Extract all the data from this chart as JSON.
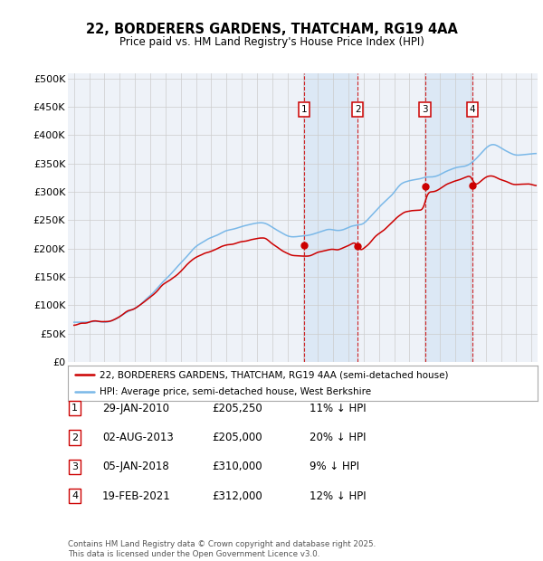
{
  "title": "22, BORDERERS GARDENS, THATCHAM, RG19 4AA",
  "subtitle": "Price paid vs. HM Land Registry's House Price Index (HPI)",
  "ylim": [
    0,
    510000
  ],
  "yticks": [
    0,
    50000,
    100000,
    150000,
    200000,
    250000,
    300000,
    350000,
    400000,
    450000,
    500000
  ],
  "background_color": "#ffffff",
  "plot_bg_color": "#eef2f8",
  "grid_color": "#cccccc",
  "red_line_color": "#cc0000",
  "blue_line_color": "#7ab8e8",
  "vline_color": "#cc0000",
  "shade_color": "#dce8f5",
  "sale_markers": [
    {
      "label": "1",
      "date_x": 2010.08,
      "price": 205250
    },
    {
      "label": "2",
      "date_x": 2013.6,
      "price": 205000
    },
    {
      "label": "3",
      "date_x": 2018.02,
      "price": 310000
    },
    {
      "label": "4",
      "date_x": 2021.12,
      "price": 312000
    }
  ],
  "legend_red": "22, BORDERERS GARDENS, THATCHAM, RG19 4AA (semi-detached house)",
  "legend_blue": "HPI: Average price, semi-detached house, West Berkshire",
  "table_rows": [
    [
      "1",
      "29-JAN-2010",
      "£205,250",
      "11% ↓ HPI"
    ],
    [
      "2",
      "02-AUG-2013",
      "£205,000",
      "20% ↓ HPI"
    ],
    [
      "3",
      "05-JAN-2018",
      "£310,000",
      "9% ↓ HPI"
    ],
    [
      "4",
      "19-FEB-2021",
      "£312,000",
      "12% ↓ HPI"
    ]
  ],
  "footnote": "Contains HM Land Registry data © Crown copyright and database right 2025.\nThis data is licensed under the Open Government Licence v3.0.",
  "xmin": 1994.6,
  "xmax": 2025.4
}
